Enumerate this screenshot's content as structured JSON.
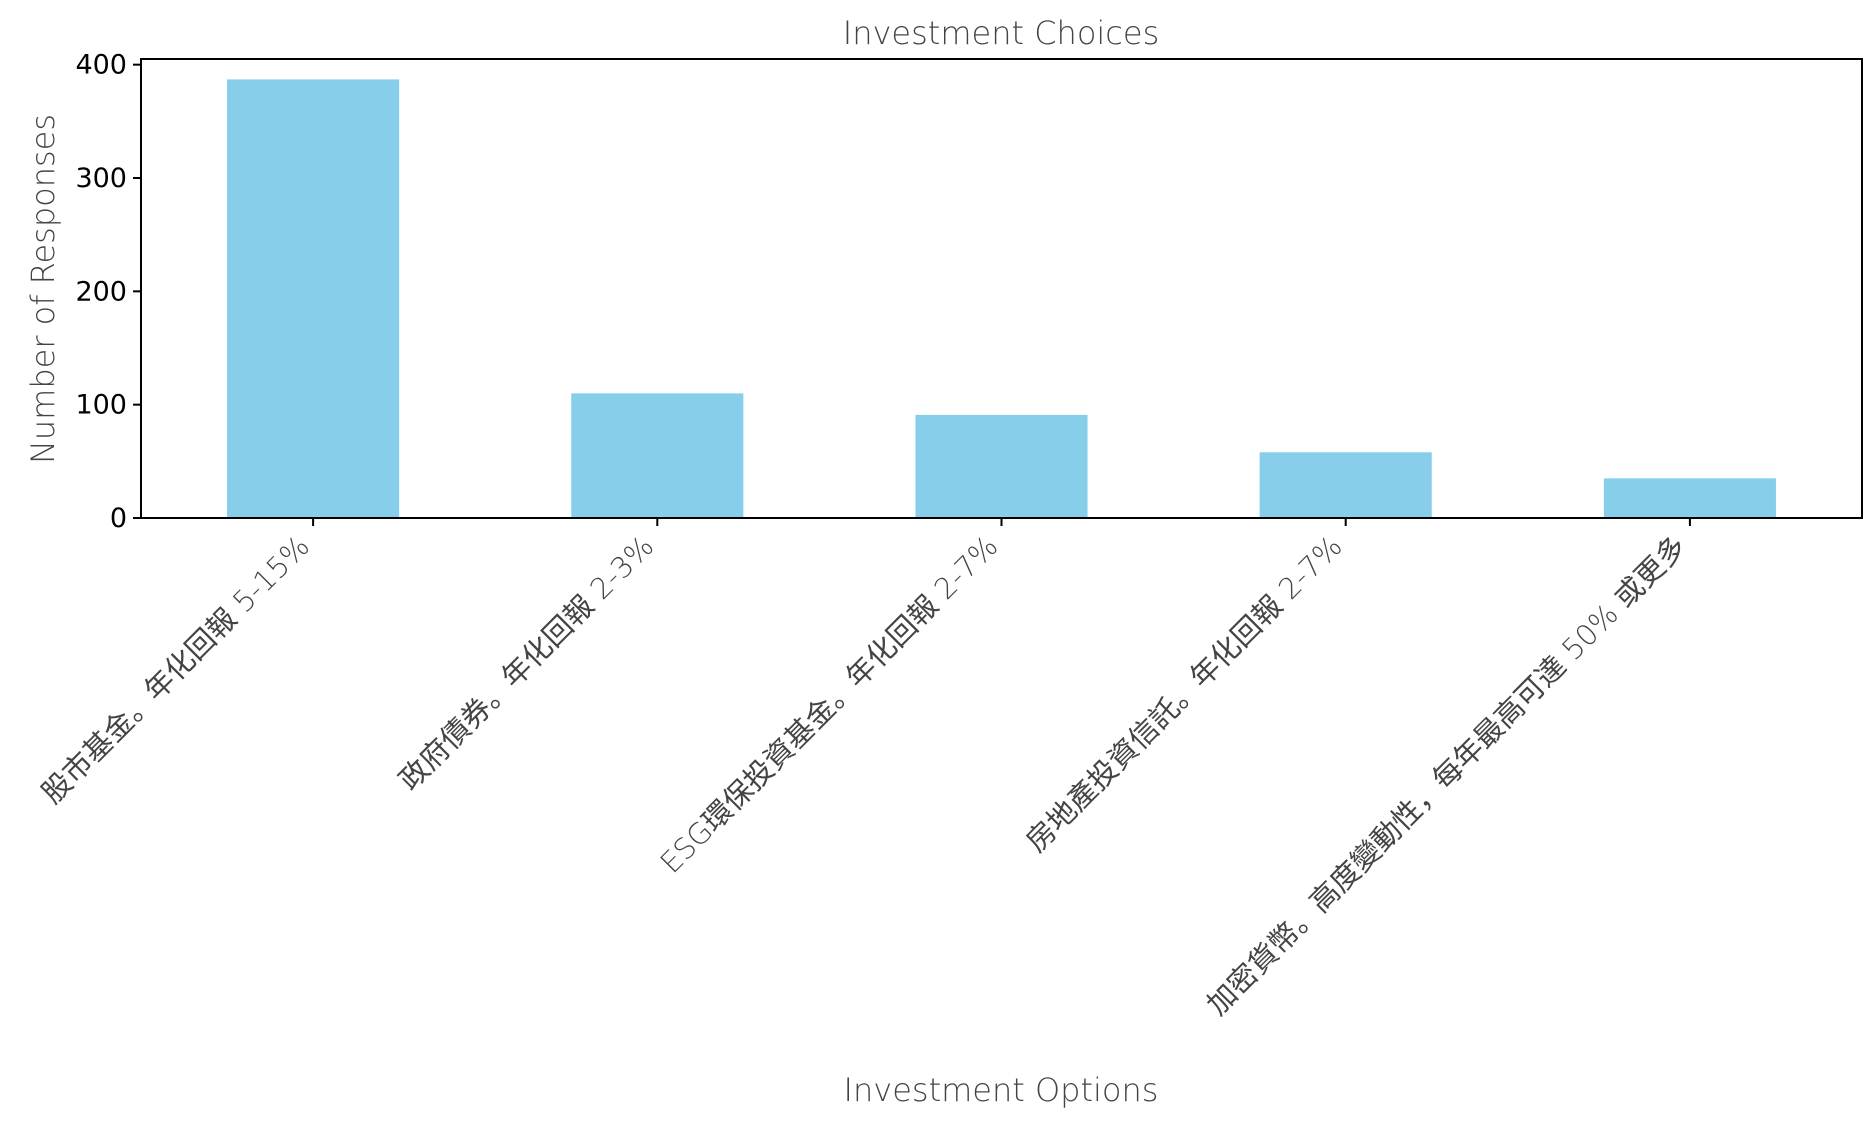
{
  "chart_data": {
    "type": "bar",
    "title": "Investment Choices",
    "xlabel": "Investment Options",
    "ylabel": "Number of Responses",
    "categories": [
      "股市基金。年化回報 5-15%",
      "政府債券。年化回報 2-3%",
      "ESG環保投資基金。年化回報 2-7%",
      "房地產投資信託。年化回報 2-7%",
      "加密貨幣。高度變動性，每年最高可達 50% 或更多"
    ],
    "values": [
      387,
      110,
      91,
      58,
      35
    ],
    "ylim": [
      0,
      405
    ],
    "yticks": [
      0,
      100,
      200,
      300,
      400
    ],
    "ytick_labels": [
      "0",
      "100",
      "200",
      "300",
      "400"
    ],
    "grid": false,
    "bar_color": "#87ceeb",
    "axis_color": "#000000",
    "text_color": "#444444"
  }
}
